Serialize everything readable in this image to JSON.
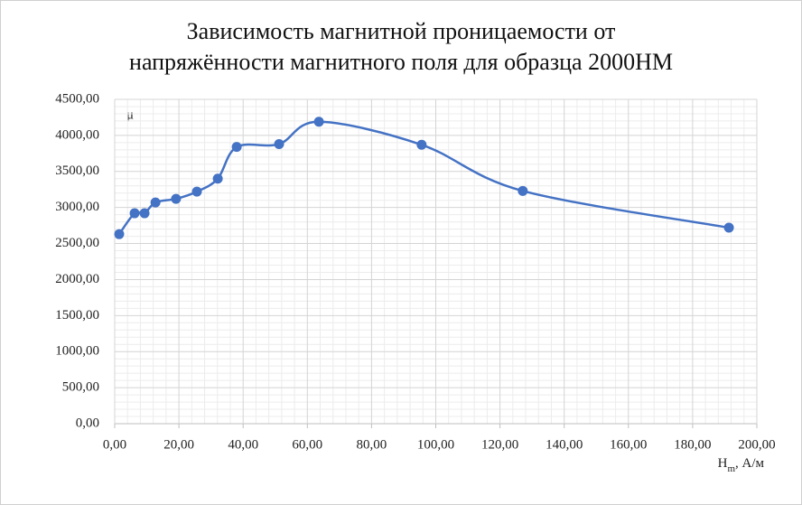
{
  "chart_data": {
    "type": "scatter",
    "title_lines": [
      "Зависимость магнитной проницаемости от",
      "напряжённости магнитного поля для образца 2000НМ"
    ],
    "ylabel": "μ",
    "xlabel": {
      "symbol": "H",
      "subscript": "m",
      "unit": ", А/м"
    },
    "series": [
      {
        "color": "#4472c4",
        "x": [
          1.4,
          6.2,
          9.3,
          12.7,
          19.1,
          25.6,
          32.1,
          38.0,
          51.2,
          63.6,
          95.6,
          127.1,
          191.3
        ],
        "values": [
          2630,
          2920,
          2920,
          3070,
          3120,
          3220,
          3400,
          3840,
          3880,
          4190,
          3870,
          3230,
          2720
        ]
      }
    ],
    "xlim": [
      0,
      200
    ],
    "xticks": [
      {
        "value": 0,
        "label": "0,00"
      },
      {
        "value": 20,
        "label": "20,00"
      },
      {
        "value": 40,
        "label": "40,00"
      },
      {
        "value": 60,
        "label": "60,00"
      },
      {
        "value": 80,
        "label": "80,00"
      },
      {
        "value": 100,
        "label": "100,00"
      },
      {
        "value": 120,
        "label": "120,00"
      },
      {
        "value": 140,
        "label": "140,00"
      },
      {
        "value": 160,
        "label": "160,00"
      },
      {
        "value": 180,
        "label": "180,00"
      },
      {
        "value": 200,
        "label": "200,00"
      }
    ],
    "ylim": [
      0,
      4500
    ],
    "yticks": [
      {
        "value": 0,
        "label": "0,00"
      },
      {
        "value": 500,
        "label": "500,00"
      },
      {
        "value": 1000,
        "label": "1000,00"
      },
      {
        "value": 1500,
        "label": "1500,00"
      },
      {
        "value": 2000,
        "label": "2000,00"
      },
      {
        "value": 2500,
        "label": "2500,00"
      },
      {
        "value": 3000,
        "label": "3000,00"
      },
      {
        "value": 3500,
        "label": "3500,00"
      },
      {
        "value": 4000,
        "label": "4000,00"
      },
      {
        "value": 4500,
        "label": "4500,00"
      }
    ],
    "grid": true,
    "minor_divisions": 5,
    "smooth": true
  }
}
